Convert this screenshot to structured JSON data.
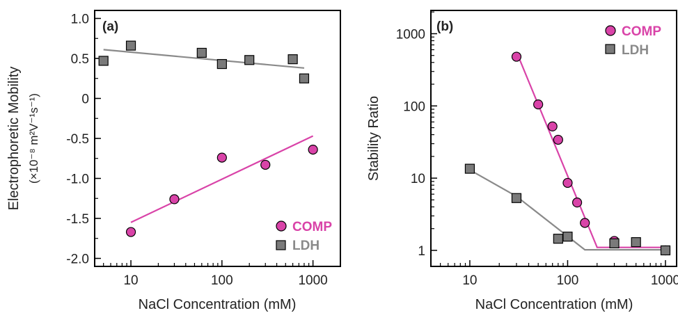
{
  "colors": {
    "comp": "#d943a8",
    "ldh": "#8a8a8a",
    "ldh_marker": "#7a7a7a",
    "axis": "#000000"
  },
  "chart_data": [
    {
      "type": "scatter",
      "panel_label": "(a)",
      "xlabel": "NaCl Concentration (mM)",
      "ylabel_line1": "Electrophoretic Mobility",
      "ylabel_line2": "(×10⁻⁸ m²V⁻¹s⁻¹)",
      "x_scale": "log",
      "xlim": [
        4,
        2000
      ],
      "ylim": [
        -2.1,
        1.1
      ],
      "x_ticks": [
        10,
        100,
        1000
      ],
      "x_tick_labels": [
        "10",
        "100",
        "1000"
      ],
      "y_ticks": [
        1.0,
        0.5,
        0,
        -0.5,
        -1.0,
        -1.5,
        -2.0
      ],
      "y_tick_labels": [
        "1.0",
        "0.5",
        "0",
        "-0.5",
        "-1.0",
        "-1.5",
        "-2.0"
      ],
      "legend_position": "bottom-right",
      "series": [
        {
          "name": "COMP",
          "marker": "circle",
          "x": [
            10,
            30,
            100,
            300,
            1000
          ],
          "y": [
            -1.67,
            -1.26,
            -0.74,
            -0.83,
            -0.64
          ],
          "fit": {
            "x": [
              10,
              1000
            ],
            "y": [
              -1.55,
              -0.47
            ]
          }
        },
        {
          "name": "LDH",
          "marker": "square",
          "x": [
            5,
            10,
            60,
            100,
            200,
            600,
            800
          ],
          "y": [
            0.47,
            0.66,
            0.57,
            0.43,
            0.48,
            0.49,
            0.25
          ],
          "fit": {
            "x": [
              5,
              800
            ],
            "y": [
              0.61,
              0.38
            ]
          }
        }
      ]
    },
    {
      "type": "scatter",
      "panel_label": "(b)",
      "xlabel": "NaCl Concentration (mM)",
      "ylabel": "Stability Ratio",
      "x_scale": "log",
      "y_scale": "log",
      "xlim": [
        4,
        1300
      ],
      "ylim": [
        0.6,
        2100
      ],
      "x_ticks": [
        10,
        100,
        1000
      ],
      "x_tick_labels": [
        "10",
        "100",
        "1000"
      ],
      "y_ticks": [
        1000,
        100,
        10,
        1
      ],
      "y_tick_labels": [
        "1000",
        "100",
        "10",
        "1"
      ],
      "legend_position": "top-right",
      "series": [
        {
          "name": "COMP",
          "marker": "circle",
          "x": [
            30,
            50,
            70,
            80,
            100,
            125,
            150,
            300,
            1000
          ],
          "y": [
            480,
            105,
            52,
            34,
            8.6,
            4.6,
            2.4,
            1.35,
            1.0
          ],
          "fit": {
            "x": [
              30,
              200,
              1000
            ],
            "y": [
              560,
              1.1,
              1.1
            ]
          }
        },
        {
          "name": "LDH",
          "marker": "square",
          "x": [
            10,
            30,
            80,
            100,
            300,
            500,
            1000
          ],
          "y": [
            13.5,
            5.3,
            1.45,
            1.55,
            1.25,
            1.3,
            1.0
          ],
          "fit": {
            "x": [
              10,
              30,
              150,
              1000
            ],
            "y": [
              13,
              5.6,
              1.02,
              1.02
            ]
          }
        }
      ]
    }
  ]
}
